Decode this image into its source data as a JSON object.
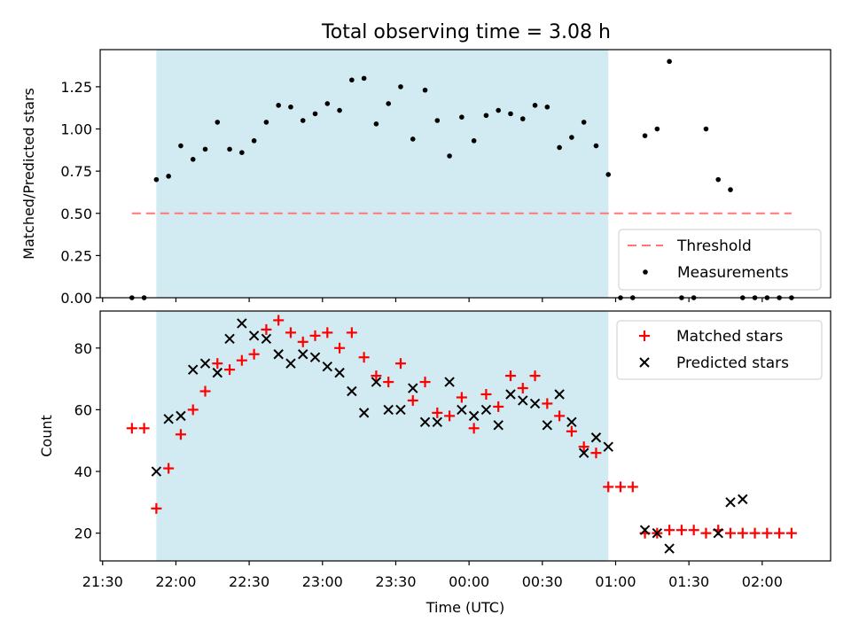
{
  "title": "Total observing time = 3.08 h",
  "colors": {
    "threshold": "#ff7777",
    "span": "#add8e6",
    "matched": "#ff0000",
    "predicted": "#000000",
    "measurement": "#000000"
  },
  "chart_data": [
    {
      "type": "scatter",
      "title": "Total observing time = 3.08 h",
      "xlabel": "",
      "ylabel": "Matched/Predicted stars",
      "ylim": [
        0,
        1.47
      ],
      "yticks": [
        "0.00",
        "0.25",
        "0.50",
        "0.75",
        "1.00",
        "1.25"
      ],
      "ytick_values": [
        0,
        0.25,
        0.5,
        0.75,
        1.0,
        1.25
      ],
      "grid": false,
      "legend": "lower-right",
      "observing_span": [
        "21:52",
        "00:57"
      ],
      "threshold": {
        "name": "Threshold",
        "value": 0.5,
        "x": [
          "21:42",
          "02:12"
        ]
      },
      "series": [
        {
          "name": "Measurements",
          "x": [
            "21:42",
            "21:47",
            "21:52",
            "21:57",
            "22:02",
            "22:07",
            "22:12",
            "22:17",
            "22:22",
            "22:27",
            "22:32",
            "22:37",
            "22:42",
            "22:47",
            "22:52",
            "22:57",
            "23:02",
            "23:07",
            "23:12",
            "23:17",
            "23:22",
            "23:27",
            "23:32",
            "23:37",
            "23:42",
            "23:47",
            "23:52",
            "23:57",
            "00:02",
            "00:07",
            "00:12",
            "00:17",
            "00:22",
            "00:27",
            "00:32",
            "00:37",
            "00:42",
            "00:47",
            "00:52",
            "00:57",
            "01:02",
            "01:07",
            "01:12",
            "01:17",
            "01:22",
            "01:27",
            "01:32",
            "01:37",
            "01:42",
            "01:47",
            "01:52",
            "01:57",
            "02:02",
            "02:07",
            "02:12"
          ],
          "y": [
            0,
            0,
            0.7,
            0.72,
            0.9,
            0.82,
            0.88,
            1.04,
            0.88,
            0.86,
            0.93,
            1.04,
            1.14,
            1.13,
            1.05,
            1.09,
            1.15,
            1.11,
            1.29,
            1.3,
            1.03,
            1.15,
            1.25,
            0.94,
            1.23,
            1.05,
            0.84,
            1.07,
            0.93,
            1.08,
            1.11,
            1.09,
            1.06,
            1.14,
            1.13,
            0.89,
            0.95,
            1.04,
            0.9,
            0.73,
            0,
            0,
            0.96,
            1.0,
            1.4,
            0,
            0,
            1.0,
            0.7,
            0.64,
            0,
            0,
            0,
            0,
            0
          ]
        }
      ]
    },
    {
      "type": "scatter",
      "xlabel": "Time (UTC)",
      "ylabel": "Count",
      "ylim": [
        11,
        92
      ],
      "yticks": [
        "20",
        "40",
        "60",
        "80"
      ],
      "ytick_values": [
        20,
        40,
        60,
        80
      ],
      "xlim": [
        "21:29",
        "02:28"
      ],
      "xticks": [
        "21:30",
        "22:00",
        "22:30",
        "23:00",
        "23:30",
        "00:00",
        "00:30",
        "01:00",
        "01:30",
        "02:00"
      ],
      "grid": false,
      "legend": "top-right",
      "observing_span": [
        "21:52",
        "00:57"
      ],
      "series": [
        {
          "name": "Matched stars",
          "x": [
            "21:42",
            "21:47",
            "21:52",
            "21:57",
            "22:02",
            "22:07",
            "22:12",
            "22:17",
            "22:22",
            "22:27",
            "22:32",
            "22:37",
            "22:42",
            "22:47",
            "22:52",
            "22:57",
            "23:02",
            "23:07",
            "23:12",
            "23:17",
            "23:22",
            "23:27",
            "23:32",
            "23:37",
            "23:42",
            "23:47",
            "23:52",
            "23:57",
            "00:02",
            "00:07",
            "00:12",
            "00:17",
            "00:22",
            "00:27",
            "00:32",
            "00:37",
            "00:42",
            "00:47",
            "00:52",
            "00:57",
            "01:02",
            "01:07",
            "01:12",
            "01:17",
            "01:22",
            "01:27",
            "01:32",
            "01:37",
            "01:42",
            "01:47",
            "01:52",
            "01:57",
            "02:02",
            "02:07",
            "02:12"
          ],
          "y": [
            54,
            54,
            28,
            41,
            52,
            60,
            66,
            75,
            73,
            76,
            78,
            86,
            89,
            85,
            82,
            84,
            85,
            80,
            85,
            77,
            71,
            69,
            75,
            63,
            69,
            59,
            58,
            64,
            54,
            65,
            61,
            71,
            67,
            71,
            62,
            58,
            53,
            48,
            46,
            35,
            35,
            35,
            20,
            20,
            21,
            21,
            21,
            20,
            21,
            20,
            20,
            20,
            20,
            20,
            20
          ]
        },
        {
          "name": "Predicted stars",
          "x": [
            "21:52",
            "21:57",
            "22:02",
            "22:07",
            "22:12",
            "22:17",
            "22:22",
            "22:27",
            "22:32",
            "22:37",
            "22:42",
            "22:47",
            "22:52",
            "22:57",
            "23:02",
            "23:07",
            "23:12",
            "23:17",
            "23:22",
            "23:27",
            "23:32",
            "23:37",
            "23:42",
            "23:47",
            "23:52",
            "23:57",
            "00:02",
            "00:07",
            "00:12",
            "00:17",
            "00:22",
            "00:27",
            "00:32",
            "00:37",
            "00:42",
            "00:47",
            "00:52",
            "00:57",
            "01:12",
            "01:17",
            "01:22",
            "01:42",
            "01:47",
            "01:52"
          ],
          "y": [
            40,
            57,
            58,
            73,
            75,
            72,
            83,
            88,
            84,
            83,
            78,
            75,
            78,
            77,
            74,
            72,
            66,
            59,
            69,
            60,
            60,
            67,
            56,
            56,
            69,
            60,
            58,
            60,
            55,
            65,
            63,
            62,
            55,
            65,
            56,
            46,
            51,
            48,
            21,
            20,
            15,
            20,
            30,
            31
          ]
        }
      ]
    }
  ]
}
